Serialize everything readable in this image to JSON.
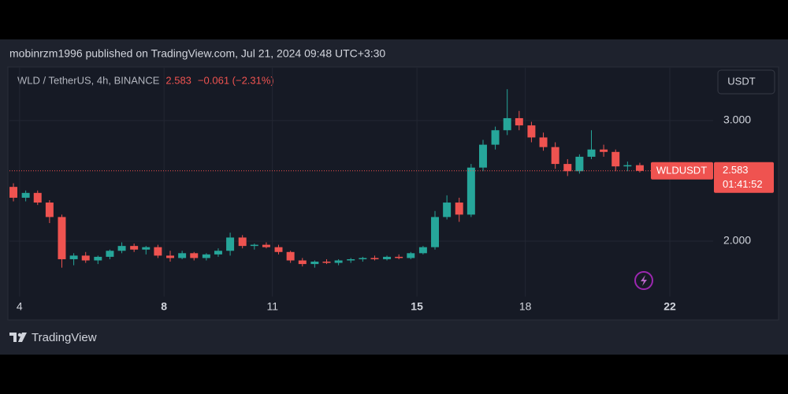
{
  "chart_data": {
    "type": "candlestick",
    "header": "mobinrzm1996 published on TradingView.com, Jul 21, 2024 09:48 UTC+3:30",
    "title": "WLD / TetherUS, 4h, BINANCE",
    "last_price": 2.583,
    "change": "−0.061 (−2.31%)",
    "currency": "USDT",
    "symbol": "WLDUSDT",
    "countdown": "01:41:52",
    "brand": "TradingView",
    "up_color": "#26a69a",
    "down_color": "#ef5350",
    "xlim": [
      3.72,
      23.2
    ],
    "xticks": [
      4,
      8,
      11,
      15,
      18,
      22
    ],
    "ylim": [
      1.54,
      3.4
    ],
    "yticks": [
      {
        "value": 2,
        "label": "2.000"
      },
      {
        "value": 3,
        "label": "3.000"
      }
    ],
    "grid": true,
    "x": [
      3.83,
      4.17,
      4.5,
      4.83,
      5.17,
      5.5,
      5.83,
      6.17,
      6.5,
      6.83,
      7.17,
      7.5,
      7.83,
      8.17,
      8.5,
      8.83,
      9.17,
      9.5,
      9.83,
      10.17,
      10.5,
      10.83,
      11.17,
      11.5,
      11.83,
      12.17,
      12.5,
      12.83,
      13.17,
      13.5,
      13.83,
      14.17,
      14.5,
      14.83,
      15.17,
      15.5,
      15.83,
      16.17,
      16.5,
      16.83,
      17.17,
      17.5,
      17.83,
      18.17,
      18.5,
      18.83,
      19.17,
      19.5,
      19.83,
      20.17,
      20.5,
      20.83,
      21.17
    ],
    "open": [
      2.45,
      2.36,
      2.4,
      2.32,
      2.2,
      1.85,
      1.88,
      1.84,
      1.87,
      1.92,
      1.96,
      1.93,
      1.95,
      1.88,
      1.86,
      1.9,
      1.86,
      1.89,
      1.92,
      2.03,
      1.96,
      1.97,
      1.95,
      1.91,
      1.84,
      1.81,
      1.83,
      1.82,
      1.84,
      1.85,
      1.86,
      1.85,
      1.87,
      1.86,
      1.9,
      1.95,
      2.2,
      2.32,
      2.22,
      2.61,
      2.8,
      2.92,
      3.02,
      2.96,
      2.86,
      2.78,
      2.64,
      2.58,
      2.7,
      2.76,
      2.74,
      2.62,
      2.63
    ],
    "high": [
      2.48,
      2.42,
      2.42,
      2.34,
      2.22,
      1.9,
      1.91,
      1.88,
      1.93,
      1.99,
      1.98,
      1.96,
      1.97,
      1.92,
      1.92,
      1.91,
      1.9,
      1.94,
      2.07,
      2.05,
      1.98,
      1.99,
      1.97,
      1.92,
      1.86,
      1.84,
      1.85,
      1.85,
      1.86,
      1.87,
      1.88,
      1.88,
      1.89,
      1.91,
      1.96,
      2.25,
      2.38,
      2.36,
      2.64,
      2.84,
      2.95,
      3.26,
      3.08,
      2.99,
      2.9,
      2.82,
      2.68,
      2.72,
      2.92,
      2.8,
      2.76,
      2.66,
      2.65
    ],
    "low": [
      2.33,
      2.33,
      2.3,
      2.15,
      1.78,
      1.8,
      1.82,
      1.81,
      1.85,
      1.9,
      1.91,
      1.89,
      1.86,
      1.83,
      1.85,
      1.84,
      1.84,
      1.87,
      1.88,
      1.94,
      1.93,
      1.94,
      1.89,
      1.82,
      1.79,
      1.78,
      1.81,
      1.8,
      1.82,
      1.83,
      1.84,
      1.84,
      1.85,
      1.85,
      1.89,
      1.93,
      2.18,
      2.16,
      2.2,
      2.58,
      2.76,
      2.88,
      2.92,
      2.82,
      2.75,
      2.6,
      2.54,
      2.56,
      2.68,
      2.7,
      2.58,
      2.58,
      2.57
    ],
    "close": [
      2.36,
      2.4,
      2.32,
      2.2,
      1.85,
      1.88,
      1.84,
      1.87,
      1.92,
      1.96,
      1.93,
      1.95,
      1.88,
      1.86,
      1.9,
      1.86,
      1.89,
      1.92,
      2.03,
      1.96,
      1.97,
      1.95,
      1.91,
      1.84,
      1.81,
      1.83,
      1.82,
      1.84,
      1.85,
      1.86,
      1.85,
      1.87,
      1.86,
      1.9,
      1.95,
      2.2,
      2.32,
      2.22,
      2.61,
      2.8,
      2.92,
      3.02,
      2.96,
      2.86,
      2.78,
      2.64,
      2.58,
      2.7,
      2.76,
      2.74,
      2.62,
      2.63,
      2.583
    ]
  }
}
